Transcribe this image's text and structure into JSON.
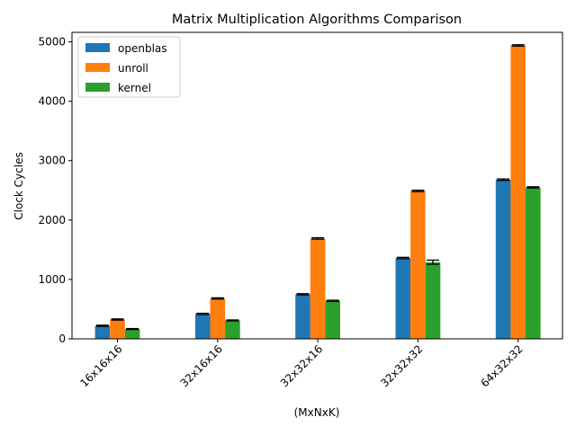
{
  "chart_data": {
    "type": "bar",
    "title": "Matrix Multiplication Algorithms Comparison",
    "xlabel": "(MxNxK)",
    "ylabel": "Clock Cycles",
    "categories": [
      "16x16x16",
      "32x16x16",
      "32x32x16",
      "32x32x32",
      "64x32x32"
    ],
    "ylim": [
      0,
      5160
    ],
    "yticks": [
      0,
      1000,
      2000,
      3000,
      4000,
      5000
    ],
    "series": [
      {
        "name": "openblas",
        "color": "#1f77b4",
        "values": [
          220,
          420,
          750,
          1360,
          2680
        ],
        "errors": [
          10,
          10,
          10,
          12,
          12
        ]
      },
      {
        "name": "unroll",
        "color": "#ff7f0e",
        "values": [
          325,
          680,
          1690,
          2490,
          4940
        ],
        "errors": [
          10,
          10,
          12,
          12,
          12
        ]
      },
      {
        "name": "kernel",
        "color": "#2ca02c",
        "values": [
          165,
          310,
          640,
          1290,
          2550
        ],
        "errors": [
          8,
          8,
          10,
          35,
          10
        ]
      }
    ],
    "legend_position": "top-left",
    "grid": false,
    "error_bars": true,
    "tick_rotation": 45
  }
}
